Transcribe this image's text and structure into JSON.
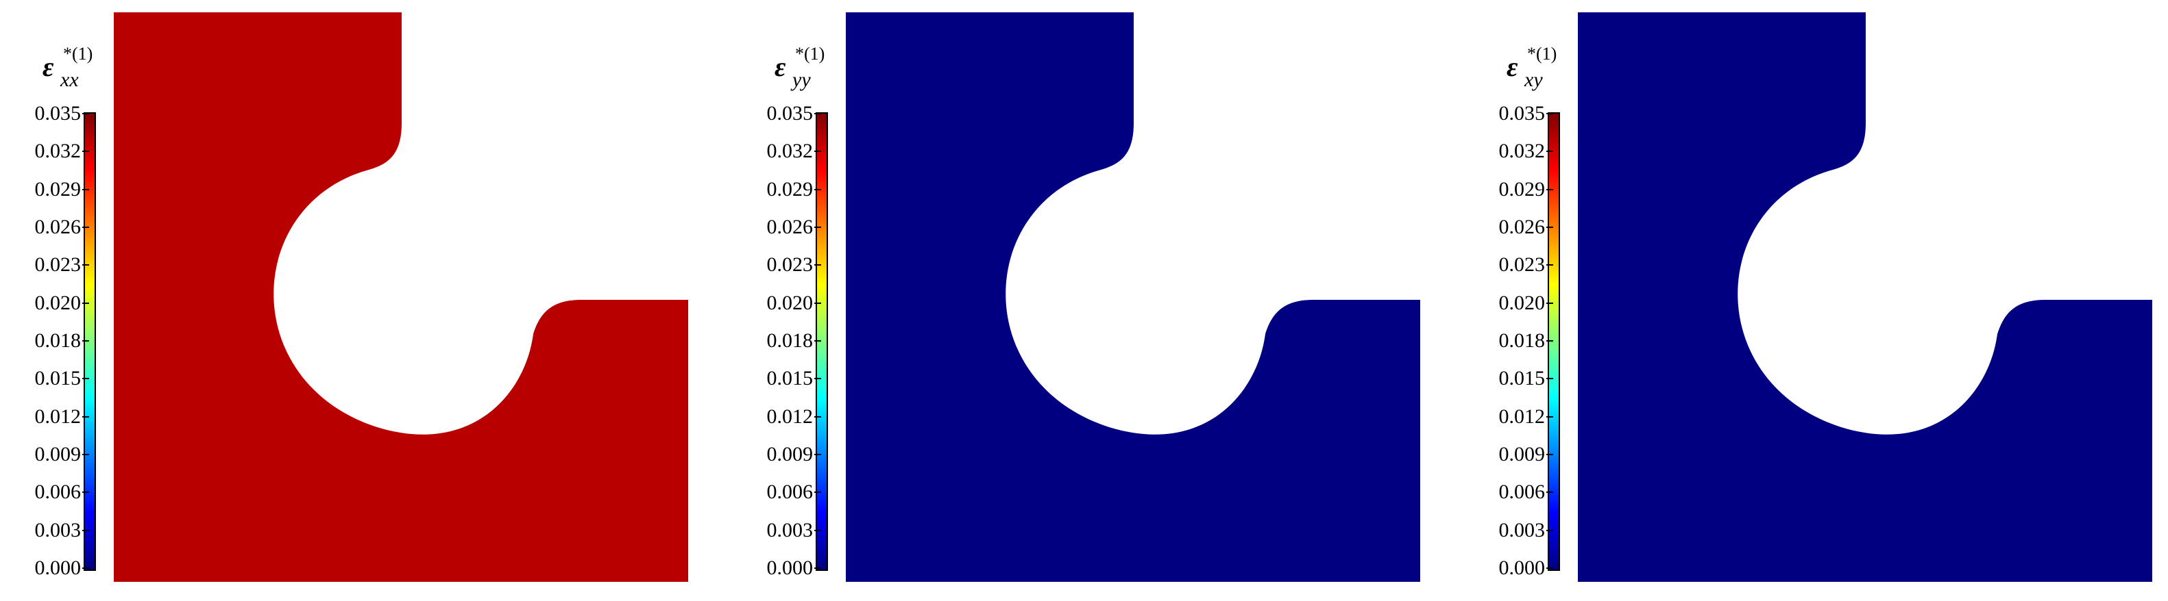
{
  "colorbar_ticks": [
    "0.035",
    "0.032",
    "0.029",
    "0.026",
    "0.023",
    "0.020",
    "0.018",
    "0.015",
    "0.012",
    "0.009",
    "0.006",
    "0.003",
    "0.000"
  ],
  "colormap": [
    "#800000",
    "#ff0000",
    "#ff8000",
    "#ffff00",
    "#80ff80",
    "#00ffff",
    "#0080ff",
    "#0000ff",
    "#000080"
  ],
  "panels": [
    {
      "symbol": "ε",
      "sup": "*(1)",
      "sub": "xx",
      "fill_color": "#b80000"
    },
    {
      "symbol": "ε",
      "sup": "*(1)",
      "sub": "yy",
      "fill_color": "#000080"
    },
    {
      "symbol": "ε",
      "sup": "*(1)",
      "sub": "xy",
      "fill_color": "#000080"
    }
  ]
}
